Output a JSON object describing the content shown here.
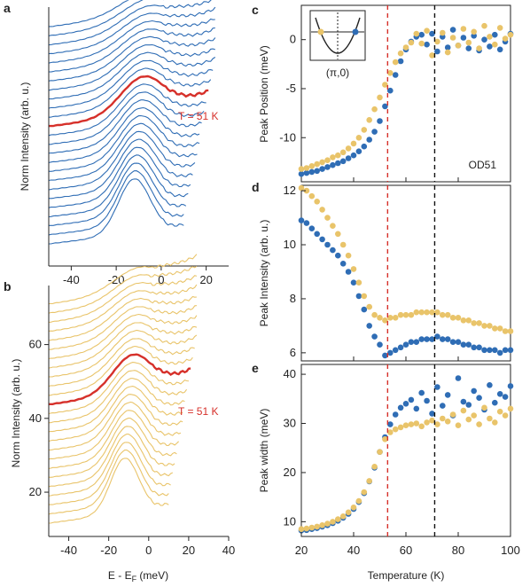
{
  "colors": {
    "blue": "#2f6db5",
    "yellow": "#e9c46a",
    "red": "#d6302a",
    "black": "#111111"
  },
  "chart_data": [
    {
      "panel": "a",
      "type": "line",
      "ylabel": "Norm Intensity (arb. u.)",
      "xlim": [
        -50,
        30
      ],
      "xticks": [
        -40,
        -20,
        0,
        20
      ],
      "annotation": "T = 51 K",
      "series_color": "blue",
      "highlight_color": "red",
      "n_curves": 25
    },
    {
      "panel": "b",
      "type": "line",
      "xlabel": "E - E",
      "xlabel_sub": "F",
      "xlabel_unit": " (meV)",
      "ylabel": "Norm Intensity (arb. u.)",
      "xlim": [
        -50,
        40
      ],
      "ylim": [
        8,
        76
      ],
      "xticks": [
        -40,
        -20,
        0,
        20,
        40
      ],
      "yticks": [
        20,
        40,
        60
      ],
      "annotation": "T = 51 K",
      "series_color": "yellow",
      "highlight_color": "red",
      "n_curves": 25
    },
    {
      "panel": "c",
      "type": "scatter",
      "ylabel": "Peak Position (meV)",
      "xlim": [
        20,
        100
      ],
      "ylim": [
        -14.5,
        3.5
      ],
      "yticks": [
        -10,
        -5,
        0
      ],
      "annotation": "OD51",
      "inset_label": "(π,0)",
      "vlines": [
        53,
        71
      ],
      "series": [
        {
          "name": "blue",
          "x": [
            20,
            22,
            24,
            26,
            28,
            30,
            32,
            34,
            36,
            38,
            40,
            42,
            44,
            46,
            48,
            50,
            52,
            54,
            56,
            58,
            60,
            62,
            64,
            66,
            68,
            70,
            72,
            74,
            76,
            78,
            80,
            82,
            84,
            86,
            88,
            90,
            92,
            94,
            96,
            98,
            100
          ],
          "y": [
            -13.7,
            -13.6,
            -13.5,
            -13.4,
            -13.2,
            -13.0,
            -12.8,
            -12.6,
            -12.4,
            -12.1,
            -11.8,
            -11.4,
            -10.9,
            -10.2,
            -9.4,
            -8.3,
            -6.8,
            -5.2,
            -3.6,
            -2.2,
            -1.0,
            -0.2,
            0.3,
            0.5,
            -0.5,
            0.6,
            -1.2,
            0.3,
            -0.8,
            1.0,
            -0.6,
            0.2,
            -0.9,
            0.4,
            -1.1,
            0.0,
            -0.7,
            0.5,
            -1.0,
            -0.2,
            0.6
          ]
        },
        {
          "name": "yellow",
          "x": [
            20,
            22,
            24,
            26,
            28,
            30,
            32,
            34,
            36,
            38,
            40,
            42,
            44,
            46,
            48,
            50,
            52,
            54,
            56,
            58,
            60,
            62,
            64,
            66,
            68,
            70,
            72,
            74,
            76,
            78,
            80,
            82,
            84,
            86,
            88,
            90,
            92,
            94,
            96,
            98,
            100
          ],
          "y": [
            -13.2,
            -13.1,
            -12.9,
            -12.7,
            -12.5,
            -12.3,
            -12.0,
            -11.8,
            -11.5,
            -11.1,
            -10.6,
            -10.0,
            -9.2,
            -8.2,
            -7.1,
            -5.9,
            -4.6,
            -3.4,
            -2.3,
            -1.4,
            -0.8,
            -0.3,
            0.6,
            -0.4,
            0.9,
            -1.6,
            -0.2,
            0.7,
            -1.3,
            0.2,
            -0.6,
            1.1,
            -0.3,
            0.8,
            -0.9,
            1.4,
            0.3,
            -0.5,
            1.2,
            0.1,
            0.5
          ]
        }
      ]
    },
    {
      "panel": "d",
      "type": "scatter",
      "ylabel": "Peak Intensity (arb. u.)",
      "xlim": [
        20,
        100
      ],
      "ylim": [
        5.7,
        12.2
      ],
      "yticks": [
        6,
        8,
        10,
        12
      ],
      "vlines": [
        53,
        71
      ],
      "series": [
        {
          "name": "blue",
          "x": [
            20,
            22,
            24,
            26,
            28,
            30,
            32,
            34,
            36,
            38,
            40,
            42,
            44,
            46,
            48,
            50,
            52,
            54,
            56,
            58,
            60,
            62,
            64,
            66,
            68,
            70,
            72,
            74,
            76,
            78,
            80,
            82,
            84,
            86,
            88,
            90,
            92,
            94,
            96,
            98,
            100
          ],
          "y": [
            10.9,
            10.8,
            10.6,
            10.4,
            10.2,
            10.0,
            9.8,
            9.6,
            9.3,
            9.0,
            8.6,
            8.1,
            7.6,
            7.0,
            6.6,
            6.3,
            5.9,
            6.0,
            6.1,
            6.2,
            6.3,
            6.4,
            6.4,
            6.5,
            6.5,
            6.5,
            6.6,
            6.5,
            6.5,
            6.4,
            6.4,
            6.3,
            6.3,
            6.2,
            6.2,
            6.1,
            6.1,
            6.1,
            6.0,
            6.1,
            6.1
          ]
        },
        {
          "name": "yellow",
          "x": [
            20,
            22,
            24,
            26,
            28,
            30,
            32,
            34,
            36,
            38,
            40,
            42,
            44,
            46,
            48,
            50,
            52,
            54,
            56,
            58,
            60,
            62,
            64,
            66,
            68,
            70,
            72,
            74,
            76,
            78,
            80,
            82,
            84,
            86,
            88,
            90,
            92,
            94,
            96,
            98,
            100
          ],
          "y": [
            12.1,
            12.0,
            11.8,
            11.6,
            11.3,
            11.0,
            10.7,
            10.4,
            10.0,
            9.6,
            9.1,
            8.6,
            8.1,
            7.7,
            7.4,
            7.3,
            7.2,
            7.3,
            7.3,
            7.4,
            7.4,
            7.4,
            7.5,
            7.5,
            7.5,
            7.5,
            7.5,
            7.4,
            7.4,
            7.3,
            7.3,
            7.2,
            7.2,
            7.1,
            7.1,
            7.0,
            7.0,
            6.9,
            6.9,
            6.8,
            6.8
          ]
        }
      ]
    },
    {
      "panel": "e",
      "type": "scatter",
      "xlabel": "Temperature (K)",
      "ylabel": "Peak width (meV)",
      "xlim": [
        20,
        100
      ],
      "ylim": [
        7,
        42
      ],
      "xticks": [
        20,
        40,
        60,
        80,
        100
      ],
      "yticks": [
        10,
        20,
        30,
        40
      ],
      "vlines": [
        53,
        71
      ],
      "series": [
        {
          "name": "blue",
          "x": [
            20,
            22,
            24,
            26,
            28,
            30,
            32,
            34,
            36,
            38,
            40,
            42,
            44,
            46,
            48,
            50,
            52,
            54,
            56,
            58,
            60,
            62,
            64,
            66,
            68,
            70,
            72,
            74,
            76,
            78,
            80,
            82,
            84,
            86,
            88,
            90,
            92,
            94,
            96,
            98,
            100
          ],
          "y": [
            8.2,
            8.3,
            8.5,
            8.7,
            9.0,
            9.3,
            9.7,
            10.2,
            10.8,
            11.6,
            12.6,
            14.0,
            15.8,
            18.2,
            21.0,
            24.2,
            27.2,
            29.8,
            31.8,
            33.2,
            34.0,
            34.8,
            33.0,
            36.2,
            34.6,
            32.0,
            37.4,
            33.6,
            35.8,
            31.6,
            39.2,
            34.4,
            33.8,
            36.6,
            35.2,
            32.8,
            37.8,
            34.2,
            36.0,
            35.4,
            37.6
          ]
        },
        {
          "name": "yellow",
          "x": [
            20,
            22,
            24,
            26,
            28,
            30,
            32,
            34,
            36,
            38,
            40,
            42,
            44,
            46,
            48,
            50,
            52,
            54,
            56,
            58,
            60,
            62,
            64,
            66,
            68,
            70,
            72,
            74,
            76,
            78,
            80,
            82,
            84,
            86,
            88,
            90,
            92,
            94,
            96,
            98,
            100
          ],
          "y": [
            8.5,
            8.6,
            8.8,
            9.0,
            9.3,
            9.6,
            10.0,
            10.5,
            11.1,
            11.9,
            12.9,
            14.2,
            16.0,
            18.3,
            21.2,
            24.2,
            26.8,
            28.2,
            28.8,
            29.2,
            29.6,
            29.8,
            30.0,
            29.4,
            30.2,
            30.6,
            29.8,
            31.0,
            30.4,
            31.8,
            29.6,
            32.6,
            30.8,
            31.6,
            29.8,
            33.2,
            31.0,
            30.2,
            32.4,
            31.6,
            33.0
          ]
        }
      ]
    }
  ]
}
